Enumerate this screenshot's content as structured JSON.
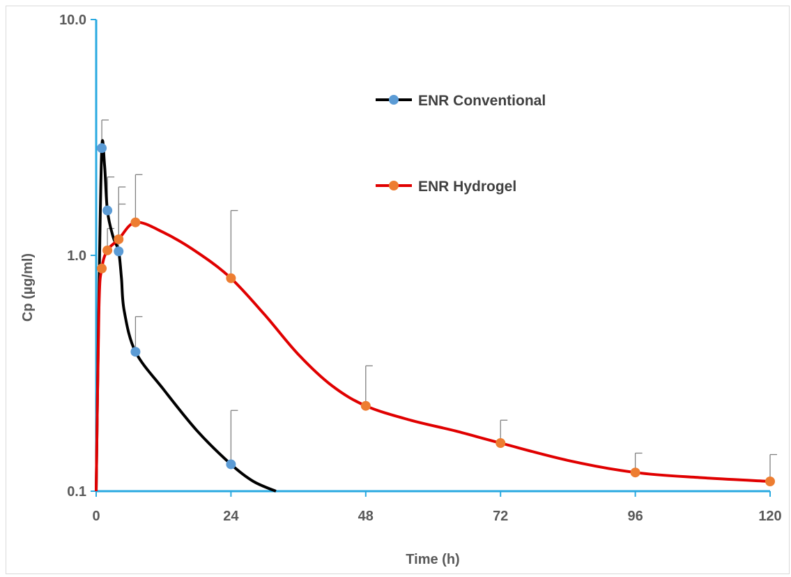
{
  "chart_data": {
    "type": "line",
    "title": "",
    "xlabel": "Time (h)",
    "ylabel": "Cp (µg/ml)",
    "x_scale": "linear",
    "y_scale": "log",
    "xlim": [
      0,
      120
    ],
    "ylim": [
      0.1,
      10.0
    ],
    "x_ticks": [
      0,
      24,
      48,
      72,
      96,
      120
    ],
    "x_tick_labels": [
      "0",
      "24",
      "48",
      "72",
      "96",
      "120"
    ],
    "y_ticks": [
      0.1,
      1.0,
      10.0
    ],
    "y_tick_labels": [
      "0.1",
      "1.0",
      "10.0"
    ],
    "grid": false,
    "legend_position": "top-right",
    "series": [
      {
        "name": "ENR Conventional",
        "line_color": "#000000",
        "marker_color": "#5b9bd5",
        "x": [
          1,
          2,
          4,
          7,
          24
        ],
        "y": [
          2.85,
          1.55,
          1.04,
          0.39,
          0.13
        ],
        "error_upper": [
          3.75,
          2.15,
          1.95,
          0.55,
          0.22
        ],
        "curve_x": [
          0,
          0.5,
          1,
          1.5,
          2,
          3,
          4,
          4.5,
          5,
          7,
          12,
          18,
          24,
          28,
          32
        ],
        "curve_y": [
          0.1,
          0.7,
          2.85,
          2.4,
          1.55,
          1.2,
          1.04,
          0.8,
          0.58,
          0.39,
          0.27,
          0.18,
          0.13,
          0.11,
          0.1
        ]
      },
      {
        "name": "ENR Hydrogel",
        "line_color": "#e00000",
        "marker_color": "#ed7d31",
        "x": [
          1,
          2,
          4,
          7,
          24,
          48,
          72,
          96,
          120
        ],
        "y": [
          0.88,
          1.05,
          1.17,
          1.38,
          0.8,
          0.23,
          0.16,
          0.12,
          0.11
        ],
        "error_upper": [
          null,
          1.3,
          1.65,
          2.2,
          1.55,
          0.34,
          0.2,
          0.145,
          0.143
        ],
        "curve_x": [
          0,
          0.5,
          1,
          2,
          4,
          7,
          12,
          18,
          24,
          30,
          36,
          42,
          48,
          56,
          64,
          72,
          84,
          96,
          108,
          120
        ],
        "curve_y": [
          0.1,
          0.6,
          0.88,
          1.05,
          1.17,
          1.38,
          1.25,
          1.03,
          0.8,
          0.56,
          0.38,
          0.28,
          0.23,
          0.2,
          0.18,
          0.16,
          0.135,
          0.12,
          0.114,
          0.11
        ]
      }
    ]
  }
}
